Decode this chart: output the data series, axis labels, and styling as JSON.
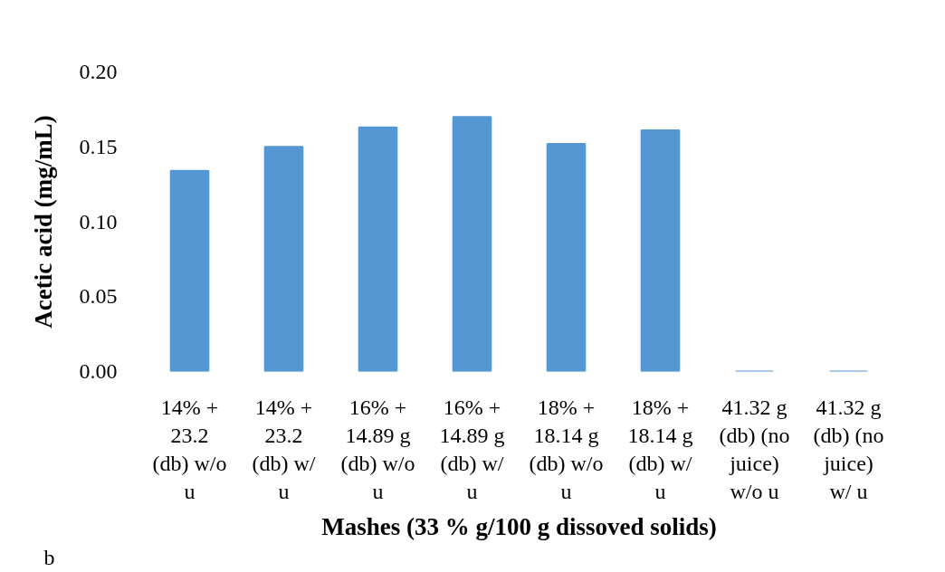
{
  "chart_data": {
    "type": "bar",
    "xlabel": "Mashes (33 % g/100 g dissoved solids)",
    "ylabel": "Acetic acid (mg/mL)",
    "annotations": [
      "b"
    ],
    "categories": [
      "14% + 23.2 (db) w/o u",
      "14% + 23.2 (db) w/ u",
      "16% + 14.89 g (db) w/o u",
      "16% + 14.89 g (db) w/ u",
      "18% + 18.14 g (db) w/o u",
      "18% + 18.14 g (db) w/ u",
      "41.32 g (db) (no juice) w/o u",
      "41.32 g (db) (no juice) w/ u"
    ],
    "values": [
      0.134,
      0.15,
      0.163,
      0.17,
      0.152,
      0.161,
      0,
      0
    ],
    "color": "#5497d3",
    "ylim": [
      0,
      0.2
    ],
    "yticks": [
      {
        "value": 0,
        "label": "0.00"
      },
      0.05,
      {
        "value": 0.1,
        "label": "0.10"
      },
      0.15,
      {
        "value": 0.2,
        "label": "0.20"
      }
    ]
  }
}
